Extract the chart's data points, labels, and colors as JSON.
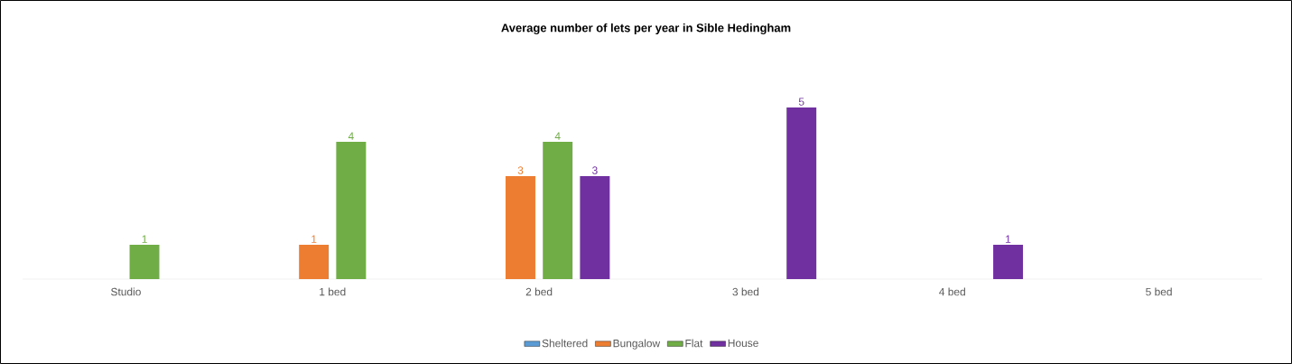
{
  "chart_data": {
    "type": "bar",
    "title": "Average number of lets per year in Sible Hedingham",
    "categories": [
      "Studio",
      "1 bed",
      "2 bed",
      "3 bed",
      "4 bed",
      "5 bed"
    ],
    "series": [
      {
        "name": "Sheltered",
        "color": "#5b9bd5",
        "values": [
          null,
          null,
          null,
          null,
          null,
          null
        ]
      },
      {
        "name": "Bungalow",
        "color": "#ed7d31",
        "values": [
          null,
          1,
          3,
          null,
          null,
          null
        ]
      },
      {
        "name": "Flat",
        "color": "#70ad47",
        "values": [
          1,
          4,
          4,
          null,
          null,
          null
        ]
      },
      {
        "name": "House",
        "color": "#7030a0",
        "values": [
          null,
          null,
          3,
          5,
          1,
          null
        ]
      }
    ],
    "data_labels": true,
    "legend": "bottom"
  }
}
